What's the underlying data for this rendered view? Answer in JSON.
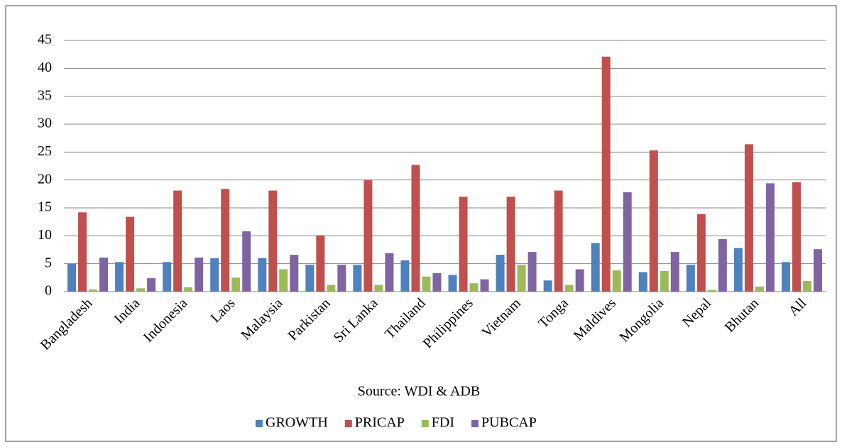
{
  "chart_data": {
    "type": "bar",
    "x_label": "Source: WDI & ADB",
    "categories": [
      "Bangladesh",
      "India",
      "Indonesia",
      "Laos",
      "Malaysia",
      "Parkistan",
      "Sri Lanka",
      "Thailand",
      "Philippines",
      "Vietnam",
      "Tonga",
      "Maldives",
      "Mongolia",
      "Nepal",
      "Bhutan",
      "All"
    ],
    "series": [
      {
        "name": "GROWTH",
        "color": "#4f81bd",
        "values": [
          5.0,
          5.3,
          5.3,
          6.0,
          6.0,
          4.8,
          4.8,
          5.6,
          3.0,
          6.6,
          2.0,
          8.7,
          3.5,
          4.8,
          7.8,
          5.3
        ]
      },
      {
        "name": "PRICAP",
        "color": "#c0504d",
        "values": [
          14.2,
          13.4,
          18.1,
          18.4,
          18.1,
          10.1,
          20.0,
          22.7,
          17.0,
          17.0,
          18.1,
          42.1,
          25.3,
          13.9,
          26.4,
          19.6
        ]
      },
      {
        "name": "FDI",
        "color": "#9bbb59",
        "values": [
          0.4,
          0.6,
          0.8,
          2.5,
          4.0,
          1.2,
          1.2,
          2.7,
          1.5,
          4.8,
          1.2,
          3.8,
          3.7,
          0.3,
          0.9,
          1.9
        ]
      },
      {
        "name": "PUBCAP",
        "color": "#8064a2",
        "values": [
          6.1,
          2.4,
          6.1,
          10.8,
          6.6,
          4.8,
          6.9,
          3.3,
          2.2,
          7.1,
          4.0,
          17.8,
          7.1,
          9.4,
          19.4,
          7.6
        ]
      }
    ],
    "ylim": [
      0,
      45
    ],
    "yticks": [
      0,
      5,
      10,
      15,
      20,
      25,
      30,
      35,
      40,
      45
    ],
    "grid": true
  }
}
